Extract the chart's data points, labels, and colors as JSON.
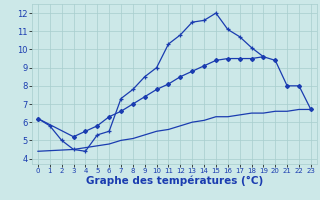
{
  "xlabel": "Graphe des températures (°C)",
  "background_color": "#cce8e8",
  "line_color": "#1a3cb0",
  "xlim": [
    -0.5,
    23.5
  ],
  "ylim": [
    3.7,
    12.5
  ],
  "xticks": [
    0,
    1,
    2,
    3,
    4,
    5,
    6,
    7,
    8,
    9,
    10,
    11,
    12,
    13,
    14,
    15,
    16,
    17,
    18,
    19,
    20,
    21,
    22,
    23
  ],
  "yticks": [
    4,
    5,
    6,
    7,
    8,
    9,
    10,
    11,
    12
  ],
  "line1_x": [
    0,
    1,
    2,
    3,
    4,
    5,
    6,
    7,
    8,
    9,
    10,
    11,
    12,
    13,
    14,
    15,
    16,
    17,
    18,
    19,
    20,
    21,
    22,
    23
  ],
  "line1_y": [
    6.2,
    5.8,
    5.0,
    4.5,
    4.4,
    5.3,
    5.5,
    7.3,
    7.8,
    8.5,
    9.0,
    10.3,
    10.8,
    11.5,
    11.6,
    12.0,
    11.1,
    10.7,
    10.1,
    9.6,
    null,
    null,
    null,
    null
  ],
  "line2_x": [
    0,
    3,
    4,
    5,
    6,
    7,
    8,
    9,
    10,
    11,
    12,
    13,
    14,
    15,
    16,
    17,
    18,
    19,
    20,
    21,
    22,
    23
  ],
  "line2_y": [
    6.2,
    5.2,
    5.5,
    5.8,
    6.3,
    6.6,
    7.0,
    7.4,
    7.8,
    8.1,
    8.5,
    8.8,
    9.1,
    9.4,
    9.5,
    9.5,
    9.5,
    9.6,
    9.4,
    8.0,
    8.0,
    6.7
  ],
  "line3_x": [
    0,
    3,
    4,
    5,
    6,
    7,
    8,
    9,
    10,
    11,
    12,
    13,
    14,
    15,
    16,
    17,
    18,
    19,
    20,
    21,
    22,
    23
  ],
  "line3_y": [
    4.4,
    4.5,
    4.6,
    4.7,
    4.8,
    5.0,
    5.1,
    5.3,
    5.5,
    5.6,
    5.8,
    6.0,
    6.1,
    6.3,
    6.3,
    6.4,
    6.5,
    6.5,
    6.6,
    6.6,
    6.7,
    6.7
  ],
  "grid_color": "#a8cece",
  "xlabel_fontsize": 7.5,
  "tick_fontsize": 6.5
}
